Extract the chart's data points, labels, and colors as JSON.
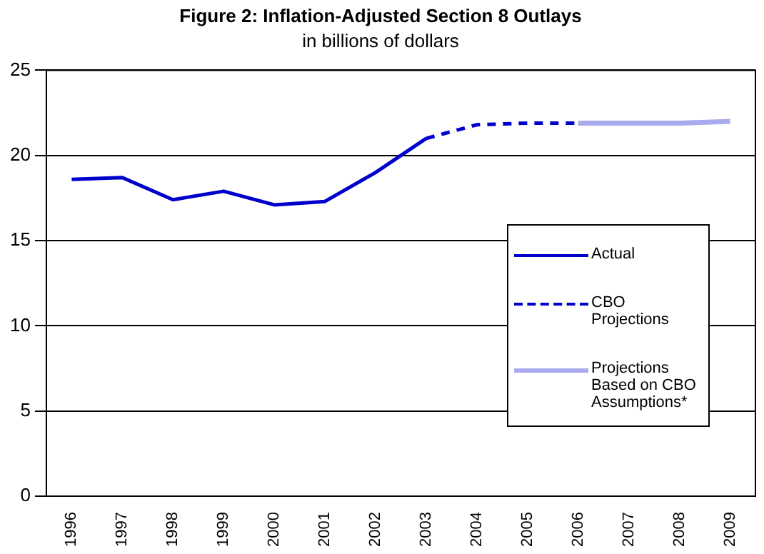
{
  "chart_data": {
    "type": "line",
    "title": "Figure 2: Inflation-Adjusted Section 8 Outlays",
    "subtitle": "in billions of dollars",
    "categories": [
      "1996",
      "1997",
      "1998",
      "1999",
      "2000",
      "2001",
      "2002",
      "2003",
      "2004",
      "2005",
      "2006",
      "2007",
      "2008",
      "2009"
    ],
    "series": [
      {
        "name": "Actual",
        "color": "#0000cc",
        "line_style": "solid",
        "values": [
          18.6,
          18.7,
          17.4,
          17.9,
          17.1,
          17.3,
          19.0,
          21.0,
          null,
          null,
          null,
          null,
          null,
          null
        ]
      },
      {
        "name": "CBO Projections",
        "color": "#0000cc",
        "line_style": "dashed",
        "values": [
          null,
          null,
          null,
          null,
          null,
          null,
          null,
          21.0,
          21.8,
          21.9,
          21.9,
          null,
          null,
          null
        ]
      },
      {
        "name": "Projections Based on CBO Assumptions*",
        "color": "#aaaaee",
        "line_style": "solid",
        "values": [
          null,
          null,
          null,
          null,
          null,
          null,
          null,
          null,
          null,
          null,
          21.9,
          21.9,
          21.9,
          22.0
        ]
      }
    ],
    "ylim": [
      0,
      25
    ],
    "yticks": [
      0,
      5,
      10,
      15,
      20,
      25
    ],
    "grid": "y",
    "legend": "right",
    "marker": "none"
  }
}
